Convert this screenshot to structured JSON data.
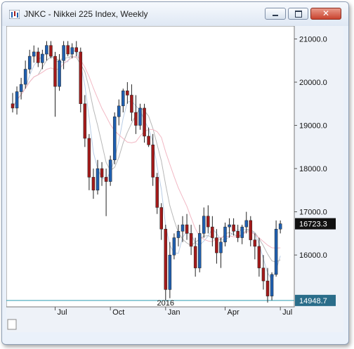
{
  "window": {
    "title": "JNKC - Nikkei 225 Index, Weekly",
    "close_glyph": "✕"
  },
  "colors": {
    "up_candle": "#1f5fb0",
    "down_candle": "#a31a1a",
    "wick": "#222222",
    "ma_fast": "#b9cde6",
    "ma_mid": "#b8b8b8",
    "ma_slow": "#f2b8c4",
    "reference_line": "#2a9bb0"
  },
  "chart_data": {
    "type": "candlestick",
    "y_axis": {
      "ticks": [
        "21000.0",
        "20000.0",
        "19000.0",
        "18000.0",
        "17000.0",
        "16000.0"
      ],
      "tick_values": [
        21000,
        20000,
        19000,
        18000,
        17000,
        16000
      ],
      "ylim": [
        14800,
        21300
      ]
    },
    "x_axis": {
      "ticks": [
        "Jul",
        "Oct",
        "Jan",
        "Apr",
        "Jul"
      ],
      "tick_week_index": [
        10,
        23,
        36,
        50,
        63
      ]
    },
    "year_marker": {
      "label": "2016",
      "week_index": 36
    },
    "last_price": {
      "label": "16723.3",
      "value": 16723.3
    },
    "reference_level": {
      "label": "14948.7",
      "value": 14948.7
    },
    "candles": [
      [
        19500,
        19750,
        19300,
        19400
      ],
      [
        19400,
        19900,
        19250,
        19780
      ],
      [
        19780,
        20100,
        19600,
        19950
      ],
      [
        19950,
        20500,
        19850,
        20300
      ],
      [
        20300,
        20750,
        20200,
        20600
      ],
      [
        20600,
        20850,
        20450,
        20700
      ],
      [
        20700,
        20800,
        20350,
        20450
      ],
      [
        20450,
        20750,
        20300,
        20650
      ],
      [
        20650,
        20950,
        20500,
        20850
      ],
      [
        20850,
        20950,
        20550,
        20600
      ],
      [
        20600,
        20700,
        19200,
        19900
      ],
      [
        19900,
        20650,
        19800,
        20500
      ],
      [
        20500,
        20950,
        20300,
        20850
      ],
      [
        20850,
        20950,
        20600,
        20650
      ],
      [
        20650,
        20900,
        20550,
        20800
      ],
      [
        20800,
        20950,
        20600,
        20700
      ],
      [
        20700,
        20800,
        19300,
        19500
      ],
      [
        19500,
        19700,
        18500,
        18700
      ],
      [
        18700,
        18800,
        17500,
        17800
      ],
      [
        17800,
        18000,
        17300,
        17500
      ],
      [
        17500,
        18200,
        17400,
        18000
      ],
      [
        18000,
        18150,
        17600,
        17800
      ],
      [
        17800,
        18000,
        16900,
        17700
      ],
      [
        17700,
        18300,
        17600,
        18200
      ],
      [
        18200,
        19300,
        18100,
        19200
      ],
      [
        19200,
        19600,
        19000,
        19450
      ],
      [
        19450,
        19850,
        19300,
        19800
      ],
      [
        19800,
        20000,
        19500,
        19700
      ],
      [
        19700,
        19950,
        19100,
        19300
      ],
      [
        19300,
        19700,
        18800,
        19000
      ],
      [
        19000,
        19500,
        18900,
        19400
      ],
      [
        19400,
        19500,
        18600,
        18750
      ],
      [
        18750,
        18950,
        18500,
        18550
      ],
      [
        18550,
        18800,
        17600,
        17800
      ],
      [
        17800,
        17900,
        16950,
        17100
      ],
      [
        17100,
        17200,
        16350,
        16600
      ],
      [
        16600,
        16700,
        14950,
        15200
      ],
      [
        15200,
        16300,
        15000,
        16000
      ],
      [
        16000,
        16500,
        15900,
        16400
      ],
      [
        16400,
        16700,
        16200,
        16550
      ],
      [
        16550,
        16900,
        16300,
        16700
      ],
      [
        16700,
        16950,
        16350,
        16500
      ],
      [
        16500,
        16700,
        16000,
        16200
      ],
      [
        16200,
        16400,
        15500,
        15700
      ],
      [
        15700,
        16700,
        15600,
        16500
      ],
      [
        16500,
        17100,
        16400,
        16900
      ],
      [
        16900,
        17150,
        16500,
        16650
      ],
      [
        16650,
        16900,
        16200,
        16400
      ],
      [
        16400,
        16600,
        15800,
        16050
      ],
      [
        16050,
        16400,
        15700,
        16300
      ],
      [
        16300,
        16750,
        16200,
        16650
      ],
      [
        16650,
        16850,
        16400,
        16700
      ],
      [
        16700,
        16850,
        16450,
        16550
      ],
      [
        16550,
        16700,
        16300,
        16400
      ],
      [
        16400,
        16700,
        16250,
        16650
      ],
      [
        16650,
        17000,
        16500,
        16800
      ],
      [
        16800,
        16900,
        16200,
        16350
      ],
      [
        16350,
        16500,
        15900,
        16200
      ],
      [
        16200,
        16400,
        15500,
        15700
      ],
      [
        15700,
        16000,
        15200,
        15400
      ],
      [
        15400,
        15700,
        14900,
        15050
      ],
      [
        15050,
        15600,
        14950,
        15550
      ],
      [
        15550,
        16800,
        15500,
        16600
      ],
      [
        16600,
        16800,
        16500,
        16723.3
      ]
    ]
  }
}
